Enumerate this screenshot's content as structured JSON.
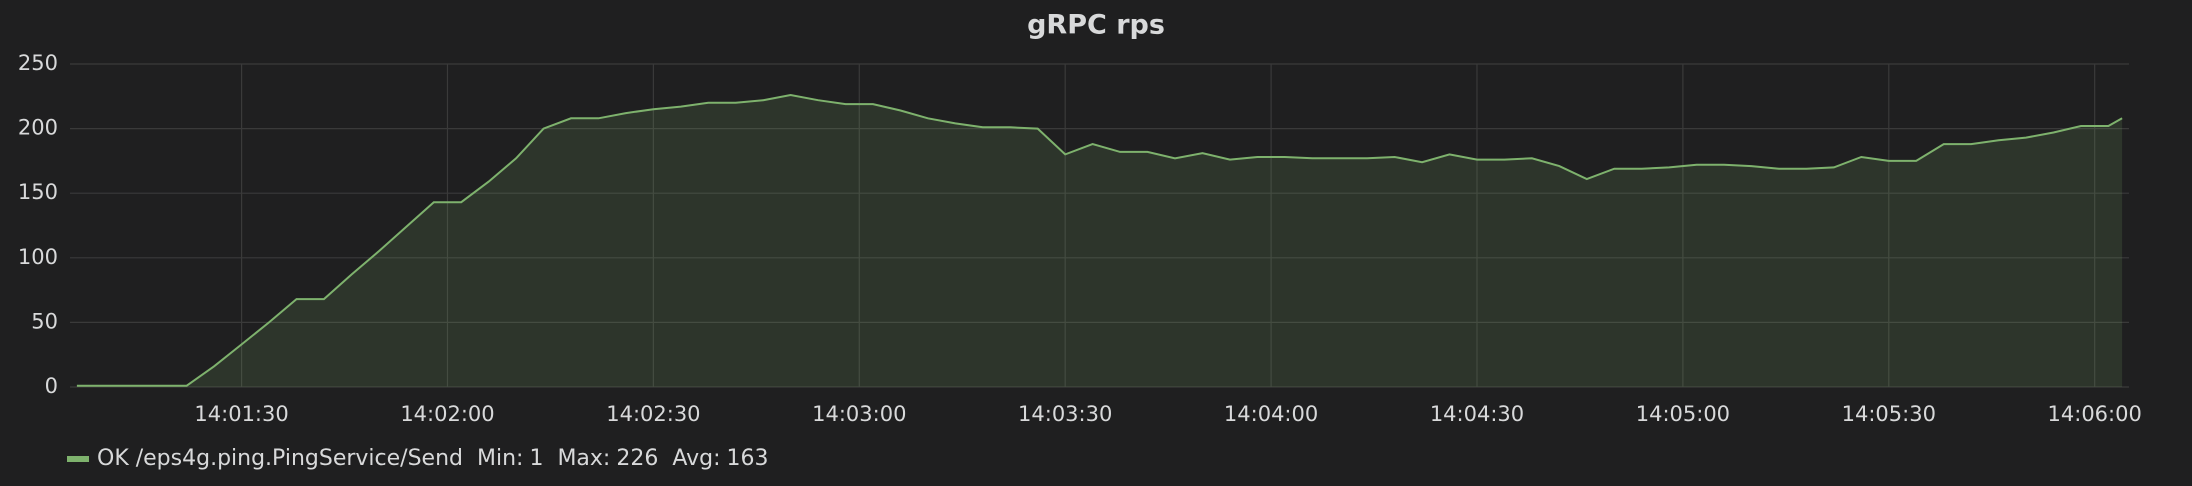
{
  "chart_data": {
    "type": "line",
    "title": "gRPC rps",
    "x": [
      "14:01:06",
      "14:01:10",
      "14:01:14",
      "14:01:18",
      "14:01:22",
      "14:01:26",
      "14:01:30",
      "14:01:34",
      "14:01:38",
      "14:01:42",
      "14:01:46",
      "14:01:50",
      "14:01:54",
      "14:01:58",
      "14:02:02",
      "14:02:06",
      "14:02:10",
      "14:02:14",
      "14:02:18",
      "14:02:22",
      "14:02:26",
      "14:02:30",
      "14:02:34",
      "14:02:38",
      "14:02:42",
      "14:02:46",
      "14:02:50",
      "14:02:54",
      "14:02:58",
      "14:03:02",
      "14:03:06",
      "14:03:10",
      "14:03:14",
      "14:03:18",
      "14:03:22",
      "14:03:26",
      "14:03:30",
      "14:03:34",
      "14:03:38",
      "14:03:42",
      "14:03:46",
      "14:03:50",
      "14:03:54",
      "14:03:58",
      "14:04:02",
      "14:04:06",
      "14:04:10",
      "14:04:14",
      "14:04:18",
      "14:04:22",
      "14:04:26",
      "14:04:30",
      "14:04:34",
      "14:04:38",
      "14:04:42",
      "14:04:46",
      "14:04:50",
      "14:04:54",
      "14:04:58",
      "14:05:02",
      "14:05:06",
      "14:05:10",
      "14:05:14",
      "14:05:18",
      "14:05:22",
      "14:05:26",
      "14:05:30",
      "14:05:34",
      "14:05:38",
      "14:05:42",
      "14:05:46",
      "14:05:50",
      "14:05:54",
      "14:05:58",
      "14:06:02",
      "14:06:04"
    ],
    "series": [
      {
        "name": "OK /eps4g.ping.PingService/Send",
        "color": "#7eb26d",
        "values": [
          1,
          1,
          1,
          1,
          1,
          16,
          33,
          50,
          68,
          68,
          87,
          105,
          124,
          143,
          143,
          159,
          177,
          200,
          208,
          208,
          212,
          215,
          217,
          220,
          220,
          222,
          226,
          222,
          219,
          219,
          214,
          208,
          204,
          201,
          201,
          200,
          180,
          188,
          182,
          182,
          177,
          181,
          176,
          178,
          178,
          177,
          177,
          177,
          178,
          174,
          180,
          176,
          176,
          177,
          171,
          161,
          169,
          169,
          170,
          172,
          172,
          171,
          169,
          169,
          170,
          178,
          175,
          175,
          188,
          188,
          191,
          193,
          197,
          202,
          202,
          208
        ],
        "stats": [
          {
            "label": "Min:",
            "value": 1
          },
          {
            "label": "Max:",
            "value": 226
          },
          {
            "label": "Avg:",
            "value": 163
          }
        ]
      }
    ],
    "xlim": [
      "14:01:05",
      "14:06:05"
    ],
    "xticks": [
      "14:01:30",
      "14:02:00",
      "14:02:30",
      "14:03:00",
      "14:03:30",
      "14:04:00",
      "14:04:30",
      "14:05:00",
      "14:05:30",
      "14:06:00"
    ],
    "ylim": [
      0,
      250
    ],
    "yticks": [
      0,
      50,
      100,
      150,
      200,
      250
    ],
    "grid": true,
    "fill": true
  }
}
